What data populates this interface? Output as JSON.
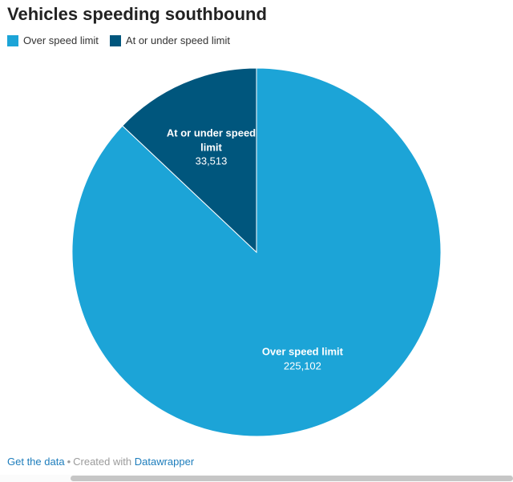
{
  "chart_data": {
    "type": "pie",
    "title": "Vehicles speeding southbound",
    "legend_position": "top-left",
    "start_angle_deg": 0,
    "direction": "clockwise",
    "slices": [
      {
        "label": "Over speed limit",
        "value": 225102,
        "display_value": "225,102",
        "color": "#1ca4d7",
        "label_radius": 0.63
      },
      {
        "label": "At or under speed limit",
        "value": 33513,
        "display_value": "33,513",
        "color": "#00567d",
        "label_radius": 0.62,
        "label_max_width": 130
      }
    ]
  },
  "footer": {
    "get_data_label": "Get the data",
    "separator": "•",
    "created_with": "Created with",
    "brand": "Datawrapper",
    "link_color": "#1d7dbc",
    "text_color": "#9b9b9b"
  }
}
